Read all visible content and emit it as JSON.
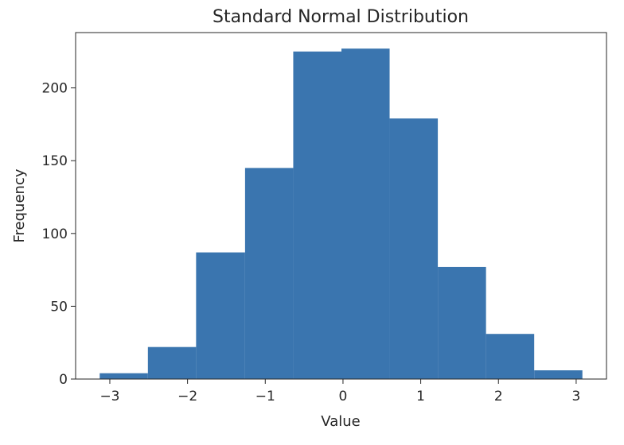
{
  "chart_data": {
    "type": "bar",
    "title": "Standard Normal Distribution",
    "xlabel": "Value",
    "ylabel": "Frequency",
    "bin_edges": [
      -3.13,
      -2.51,
      -1.89,
      -1.26,
      -0.64,
      -0.02,
      0.6,
      1.22,
      1.84,
      2.46,
      3.08
    ],
    "values": [
      4,
      22,
      87,
      145,
      225,
      227,
      179,
      77,
      31,
      6
    ],
    "xlim": [
      -3.44,
      3.39
    ],
    "ylim": [
      0,
      238
    ],
    "xticks": [
      -3,
      -2,
      -1,
      0,
      1,
      2,
      3
    ],
    "xtick_labels": [
      "−3",
      "−2",
      "−1",
      "0",
      "1",
      "2",
      "3"
    ],
    "yticks": [
      0,
      50,
      100,
      150,
      200
    ],
    "ytick_labels": [
      "0",
      "50",
      "100",
      "150",
      "200"
    ],
    "grid": false,
    "bar_color": "#3a75af"
  }
}
